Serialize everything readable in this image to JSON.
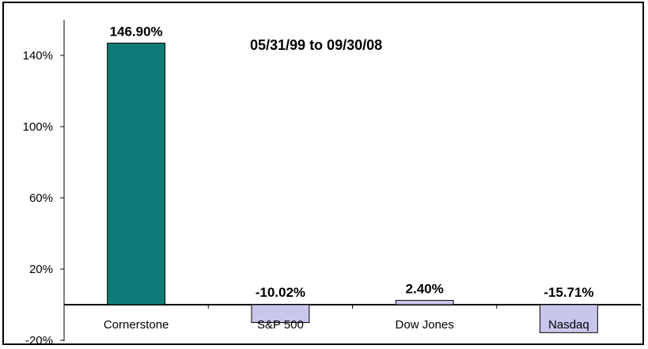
{
  "chart_data": {
    "type": "bar",
    "title": "05/31/99 to 09/30/08",
    "categories": [
      "Cornerstone",
      "S&P 500",
      "Dow Jones",
      "Nasdaq"
    ],
    "values": [
      146.9,
      -10.02,
      2.4,
      -15.71
    ],
    "data_labels": [
      "146.90%",
      "-10.02%",
      "2.40%",
      "-15.71%"
    ],
    "bar_colors": [
      "#0e7b79",
      "#c8c6ec",
      "#c8c6ec",
      "#c8c6ec"
    ],
    "y_ticks": [
      -20,
      20,
      60,
      100,
      140
    ],
    "y_tick_labels": [
      "-20%",
      "20%",
      "60%",
      "100%",
      "140%"
    ],
    "ylim": [
      -20,
      160
    ],
    "grid": false,
    "legend": "none"
  }
}
